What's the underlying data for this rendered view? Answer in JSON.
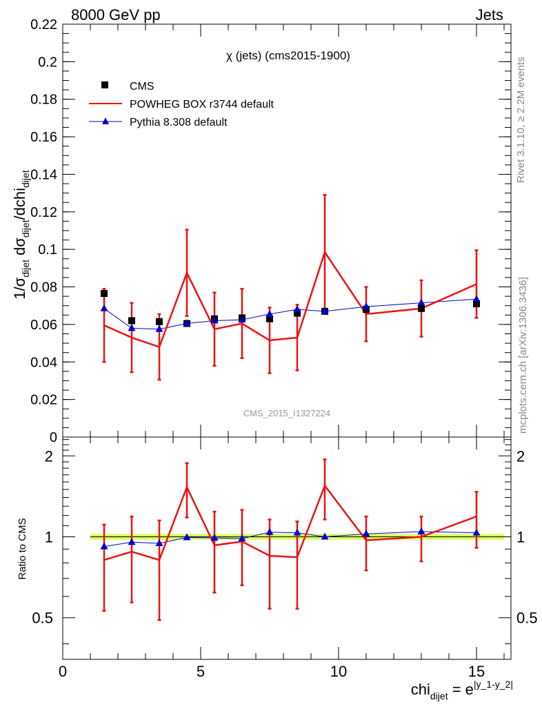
{
  "header": {
    "left": "8000 GeV pp",
    "right": "Jets"
  },
  "side_labels": {
    "rivet": "Rivet 3.1.10, ≥ 2.2M events",
    "source": "mcplots.cern.ch [arXiv:1306.3436]"
  },
  "colors": {
    "data": "#000000",
    "powheg": "#ee1111",
    "pythia": "#0000cc",
    "band": "#d9ff66"
  },
  "chart_data": [
    {
      "type": "line",
      "panel": "main",
      "title": "χ (jets) (cms2015-1900)",
      "watermark": "CMS_2015_I1327224",
      "ylabel": "1/σ_dijet dσ_dijet/dchi_dijet",
      "ylim": [
        0,
        0.22
      ],
      "xlim": [
        0,
        16.25
      ],
      "x_ticks": [
        0,
        5,
        10,
        15
      ],
      "y_ticks": [
        {
          "v": 0,
          "label": "0"
        },
        {
          "v": 0.02,
          "label": "0.02"
        },
        {
          "v": 0.04,
          "label": "0.04"
        },
        {
          "v": 0.06,
          "label": "0.06"
        },
        {
          "v": 0.08,
          "label": "0.08"
        },
        {
          "v": 0.1,
          "label": "0.1"
        },
        {
          "v": 0.12,
          "label": "0.12"
        },
        {
          "v": 0.14,
          "label": "0.14"
        },
        {
          "v": 0.16,
          "label": "0.16"
        },
        {
          "v": 0.18,
          "label": "0.18"
        },
        {
          "v": 0.2,
          "label": "0.2"
        },
        {
          "v": 0.22,
          "label": "0.22"
        }
      ],
      "legend_position": "top-left",
      "grid": false,
      "series": [
        {
          "name": "CMS",
          "style": "markers",
          "x": [
            1.5,
            2.5,
            3.5,
            4.5,
            5.5,
            6.5,
            7.5,
            8.5,
            9.5,
            11,
            13,
            15
          ],
          "y": [
            0.0765,
            0.062,
            0.0615,
            0.0605,
            0.063,
            0.0635,
            0.063,
            0.066,
            0.067,
            0.068,
            0.0685,
            0.071
          ]
        },
        {
          "name": "POWHEG BOX r3744 default",
          "style": "line_errors",
          "x": [
            1.5,
            2.5,
            3.5,
            4.5,
            5.5,
            6.5,
            7.5,
            8.5,
            9.5,
            11,
            13,
            15
          ],
          "y": [
            0.0595,
            0.053,
            0.048,
            0.0875,
            0.0575,
            0.0605,
            0.0515,
            0.053,
            0.0985,
            0.0655,
            0.0685,
            0.0815
          ],
          "err": [
            0.0195,
            0.0185,
            0.0175,
            0.023,
            0.0195,
            0.0185,
            0.0175,
            0.0175,
            0.0305,
            0.0145,
            0.015,
            0.018
          ]
        },
        {
          "name": "Pythia 8.308 default",
          "style": "line_triangles",
          "x": [
            1.5,
            2.5,
            3.5,
            4.5,
            5.5,
            6.5,
            7.5,
            8.5,
            9.5,
            11,
            13,
            15
          ],
          "y": [
            0.0685,
            0.058,
            0.0575,
            0.0605,
            0.062,
            0.0625,
            0.0655,
            0.068,
            0.067,
            0.0695,
            0.0715,
            0.0735
          ]
        }
      ]
    },
    {
      "type": "line",
      "panel": "ratio",
      "ylabel": "Ratio to CMS",
      "xlabel": "chi_dijet = e^|y_1-y_2|",
      "ylim": [
        0.35,
        2.35
      ],
      "xlim": [
        0,
        16.25
      ],
      "x_ticks": [
        {
          "v": 0,
          "label": "0"
        },
        {
          "v": 5,
          "label": "5"
        },
        {
          "v": 10,
          "label": "10"
        },
        {
          "v": 15,
          "label": "15"
        }
      ],
      "y_ticks": [
        {
          "v": 0.5,
          "label": "0.5"
        },
        {
          "v": 1,
          "label": "1"
        },
        {
          "v": 2,
          "label": "2"
        }
      ],
      "band": [
        0.975,
        1.025
      ],
      "series": [
        {
          "name": "POWHEG BOX r3744 default",
          "x": [
            1.5,
            2.5,
            3.5,
            4.5,
            5.5,
            6.5,
            7.5,
            8.5,
            9.5,
            11,
            13,
            15
          ],
          "y": [
            0.82,
            0.88,
            0.82,
            1.53,
            0.93,
            0.96,
            0.85,
            0.84,
            1.55,
            0.97,
            1.0,
            1.19
          ],
          "err": [
            0.29,
            0.31,
            0.33,
            0.35,
            0.31,
            0.3,
            0.31,
            0.3,
            0.39,
            0.22,
            0.19,
            0.28
          ]
        },
        {
          "name": "Pythia 8.308 default",
          "x": [
            1.5,
            2.5,
            3.5,
            4.5,
            5.5,
            6.5,
            7.5,
            8.5,
            9.5,
            11,
            13,
            15
          ],
          "y": [
            0.92,
            0.955,
            0.945,
            0.995,
            0.99,
            0.985,
            1.04,
            1.035,
            1.0,
            1.025,
            1.045,
            1.035
          ]
        }
      ]
    }
  ]
}
